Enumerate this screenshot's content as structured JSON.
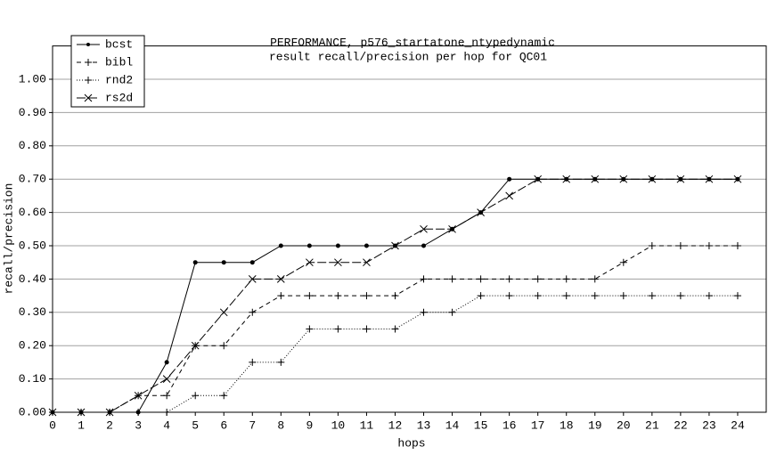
{
  "chart_data": {
    "type": "line",
    "title": "PERFORMANCE, p576_startatone_ntypedynamic",
    "subtitle": "result recall/precision per hop for QC01",
    "x_label": "hops",
    "y_label": "recall/precision",
    "x": [
      0,
      1,
      2,
      3,
      4,
      5,
      6,
      7,
      8,
      9,
      10,
      11,
      12,
      13,
      14,
      15,
      16,
      17,
      18,
      19,
      20,
      21,
      22,
      23,
      24
    ],
    "xlim": [
      0,
      25
    ],
    "xticks": [
      0,
      1,
      2,
      3,
      4,
      5,
      6,
      7,
      8,
      9,
      10,
      11,
      12,
      13,
      14,
      15,
      16,
      17,
      18,
      19,
      20,
      21,
      22,
      23,
      24
    ],
    "ylim": [
      0,
      1.1
    ],
    "yticks": [
      {
        "value": 0,
        "label": "0.00"
      },
      {
        "value": 0.1,
        "label": "0.10"
      },
      {
        "value": 0.2,
        "label": "0.20"
      },
      {
        "value": 0.3,
        "label": "0.30"
      },
      {
        "value": 0.4,
        "label": "0.40"
      },
      {
        "value": 0.5,
        "label": "0.50"
      },
      {
        "value": 0.6,
        "label": "0.60"
      },
      {
        "value": 0.7,
        "label": "0.70"
      },
      {
        "value": 0.8,
        "label": "0.80"
      },
      {
        "value": 0.9,
        "label": "0.90"
      },
      {
        "value": 1,
        "label": "1.00"
      }
    ],
    "grid": true,
    "legend": "top-left",
    "series": [
      {
        "name": "bcst",
        "color": "#000000",
        "dash": "none",
        "marker": "dot",
        "values": [
          0,
          0,
          0,
          0,
          0.15,
          0.45,
          0.45,
          0.45,
          0.5,
          0.5,
          0.5,
          0.5,
          0.5,
          0.5,
          0.55,
          0.6,
          0.7,
          0.7,
          0.7,
          0.7,
          0.7,
          0.7,
          0.7,
          0.7,
          0.7
        ]
      },
      {
        "name": "bibl",
        "color": "#000000",
        "dash": "5 4",
        "marker": "plus",
        "values": [
          0,
          0,
          0,
          0.05,
          0.05,
          0.2,
          0.2,
          0.3,
          0.35,
          0.35,
          0.35,
          0.35,
          0.35,
          0.4,
          0.4,
          0.4,
          0.4,
          0.4,
          0.4,
          0.4,
          0.45,
          0.5,
          0.5,
          0.5,
          0.5
        ]
      },
      {
        "name": "rnd2",
        "color": "#000000",
        "dash": "1 2",
        "marker": "plus",
        "values": [
          0,
          0,
          0,
          0,
          0,
          0.05,
          0.05,
          0.15,
          0.15,
          0.25,
          0.25,
          0.25,
          0.25,
          0.3,
          0.3,
          0.35,
          0.35,
          0.35,
          0.35,
          0.35,
          0.35,
          0.35,
          0.35,
          0.35,
          0.35
        ]
      },
      {
        "name": "rs2d",
        "color": "#000000",
        "dash": "10 3",
        "marker": "cross",
        "values": [
          0,
          0,
          0,
          0.05,
          0.1,
          0.2,
          0.3,
          0.4,
          0.4,
          0.45,
          0.45,
          0.45,
          0.5,
          0.55,
          0.55,
          0.6,
          0.65,
          0.7,
          0.7,
          0.7,
          0.7,
          0.7,
          0.7,
          0.7,
          0.7
        ]
      }
    ]
  }
}
